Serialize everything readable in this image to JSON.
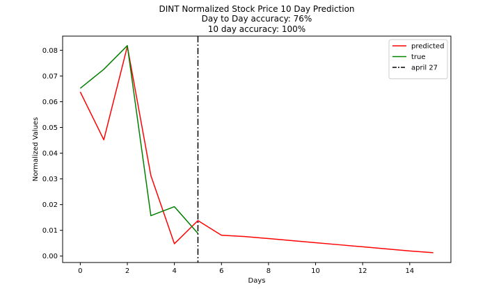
{
  "chart_data": {
    "type": "line",
    "title_lines": [
      "DINT Normalized Stock Price 10 Day Prediction",
      "Day to Day accuracy: 76%",
      "10 day accuracy: 100%"
    ],
    "xlabel": "Days",
    "ylabel": "Normalized Values",
    "xlim": [
      -0.75,
      15.75
    ],
    "ylim": [
      -0.0025,
      0.0855
    ],
    "x_ticks": [
      0,
      2,
      4,
      6,
      8,
      10,
      12,
      14
    ],
    "x_tick_labels": [
      "0",
      "2",
      "4",
      "6",
      "8",
      "10",
      "12",
      "14"
    ],
    "y_ticks": [
      0.0,
      0.01,
      0.02,
      0.03,
      0.04,
      0.05,
      0.06,
      0.07,
      0.08
    ],
    "y_tick_labels": [
      "0.00",
      "0.01",
      "0.02",
      "0.03",
      "0.04",
      "0.05",
      "0.06",
      "0.07",
      "0.08"
    ],
    "grid": false,
    "legend_placement": "top-right",
    "series": [
      {
        "name": "predicted",
        "color": "#ff0000",
        "x": [
          0,
          1,
          2,
          3,
          4,
          5,
          6,
          7,
          8,
          9,
          10,
          11,
          12,
          13,
          14,
          15
        ],
        "y": [
          0.0638,
          0.0452,
          0.0815,
          0.0313,
          0.0048,
          0.0138,
          0.0081,
          0.0076,
          0.0068,
          0.006,
          0.0052,
          0.0044,
          0.0036,
          0.0028,
          0.002,
          0.0013
        ]
      },
      {
        "name": "true",
        "color": "#008000",
        "x": [
          0,
          1,
          2,
          3,
          4,
          5
        ],
        "y": [
          0.0652,
          0.0726,
          0.0818,
          0.0157,
          0.0192,
          0.0088
        ]
      }
    ],
    "vertical_lines": [
      {
        "name": "april 27",
        "x": 5,
        "color": "#000000",
        "style": "dashdot"
      }
    ]
  }
}
